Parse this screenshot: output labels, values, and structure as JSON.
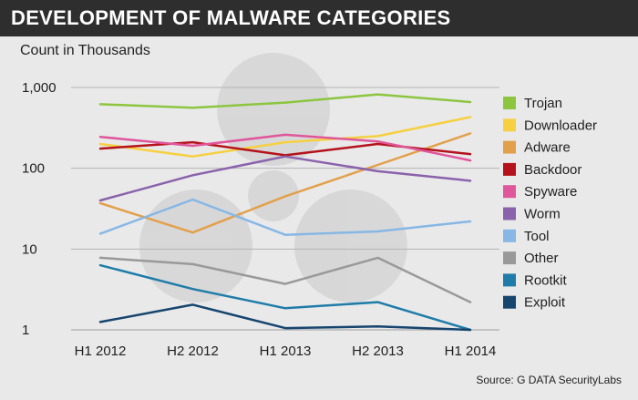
{
  "header": {
    "title": "DEVELOPMENT OF MALWARE CATEGORIES",
    "ylabel": "Count in Thousands",
    "source": "Source: G DATA SecurityLabs"
  },
  "chart_data": {
    "type": "line",
    "title": "DEVELOPMENT OF MALWARE CATEGORIES",
    "ylabel": "Count in Thousands",
    "xlabel": "",
    "yscale": "log",
    "ylim": [
      1,
      1000
    ],
    "yticks": [
      {
        "value": 1000,
        "label": "1,000"
      },
      {
        "value": 100,
        "label": "100"
      },
      {
        "value": 10,
        "label": "10"
      },
      {
        "value": 1,
        "label": "1"
      }
    ],
    "categories": [
      "H1 2012",
      "H2 2012",
      "H1 2013",
      "H2 2013",
      "H1 2014"
    ],
    "grid": "horizontal",
    "legend": "right",
    "series": [
      {
        "name": "Trojan",
        "color": "#8cc63f",
        "values": [
          620,
          560,
          650,
          820,
          660
        ]
      },
      {
        "name": "Downloader",
        "color": "#f6d040",
        "values": [
          200,
          140,
          210,
          250,
          430
        ]
      },
      {
        "name": "Adware",
        "color": "#e3a04a",
        "values": [
          37,
          16,
          45,
          110,
          270
        ]
      },
      {
        "name": "Backdoor",
        "color": "#b5121b",
        "values": [
          175,
          210,
          145,
          200,
          150
        ]
      },
      {
        "name": "Spyware",
        "color": "#e0569b",
        "values": [
          245,
          190,
          260,
          215,
          125
        ]
      },
      {
        "name": "Worm",
        "color": "#8a62ab",
        "values": [
          40,
          82,
          140,
          92,
          70
        ]
      },
      {
        "name": "Tool",
        "color": "#86b7e5",
        "values": [
          15.5,
          41,
          15,
          16.5,
          22
        ]
      },
      {
        "name": "Other",
        "color": "#999999",
        "values": [
          7.8,
          6.5,
          3.7,
          7.8,
          2.2
        ]
      },
      {
        "name": "Rootkit",
        "color": "#1f7ca8",
        "values": [
          6.3,
          3.2,
          1.85,
          2.2,
          1.0
        ]
      },
      {
        "name": "Exploit",
        "color": "#16456e",
        "values": [
          1.25,
          2.05,
          1.05,
          1.1,
          1.0
        ]
      }
    ]
  }
}
